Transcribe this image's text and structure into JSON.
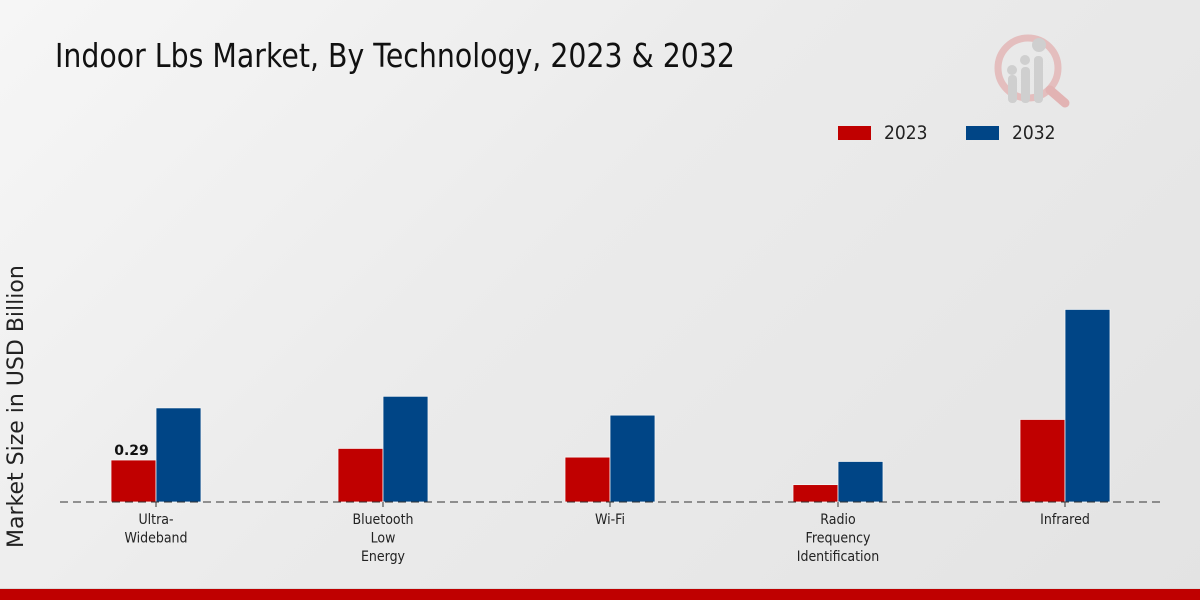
{
  "title": "Indoor Lbs Market, By Technology, 2023 & 2032",
  "logo": {
    "icon": "market-research-magnifier-logo-icon"
  },
  "colors": {
    "series_2023": "#c00000",
    "series_2032": "#004586",
    "footer_bar": "#bf0000"
  },
  "chart_data": {
    "type": "bar",
    "title": "Indoor Lbs Market, By Technology, 2023 & 2032",
    "xlabel": "",
    "ylabel": "Market Size in USD Billion",
    "categories": [
      "Ultra-\nWideband",
      "Bluetooth\nLow\nEnergy",
      "Wi-Fi",
      "Radio\nFrequency\nIdentification",
      "Infrared"
    ],
    "series": [
      {
        "name": "2023",
        "color": "#c00000",
        "values": [
          0.29,
          0.37,
          0.31,
          0.12,
          0.57
        ]
      },
      {
        "name": "2032",
        "color": "#004586",
        "values": [
          0.65,
          0.73,
          0.6,
          0.28,
          1.33
        ]
      }
    ],
    "data_labels": [
      {
        "series": "2023",
        "category_index": 0,
        "text": "0.29"
      }
    ],
    "ylim": [
      0,
      1.45
    ],
    "grid": false,
    "baseline_style": "dashed",
    "legend": {
      "position": "top-right",
      "entries": [
        "2023",
        "2032"
      ]
    }
  }
}
